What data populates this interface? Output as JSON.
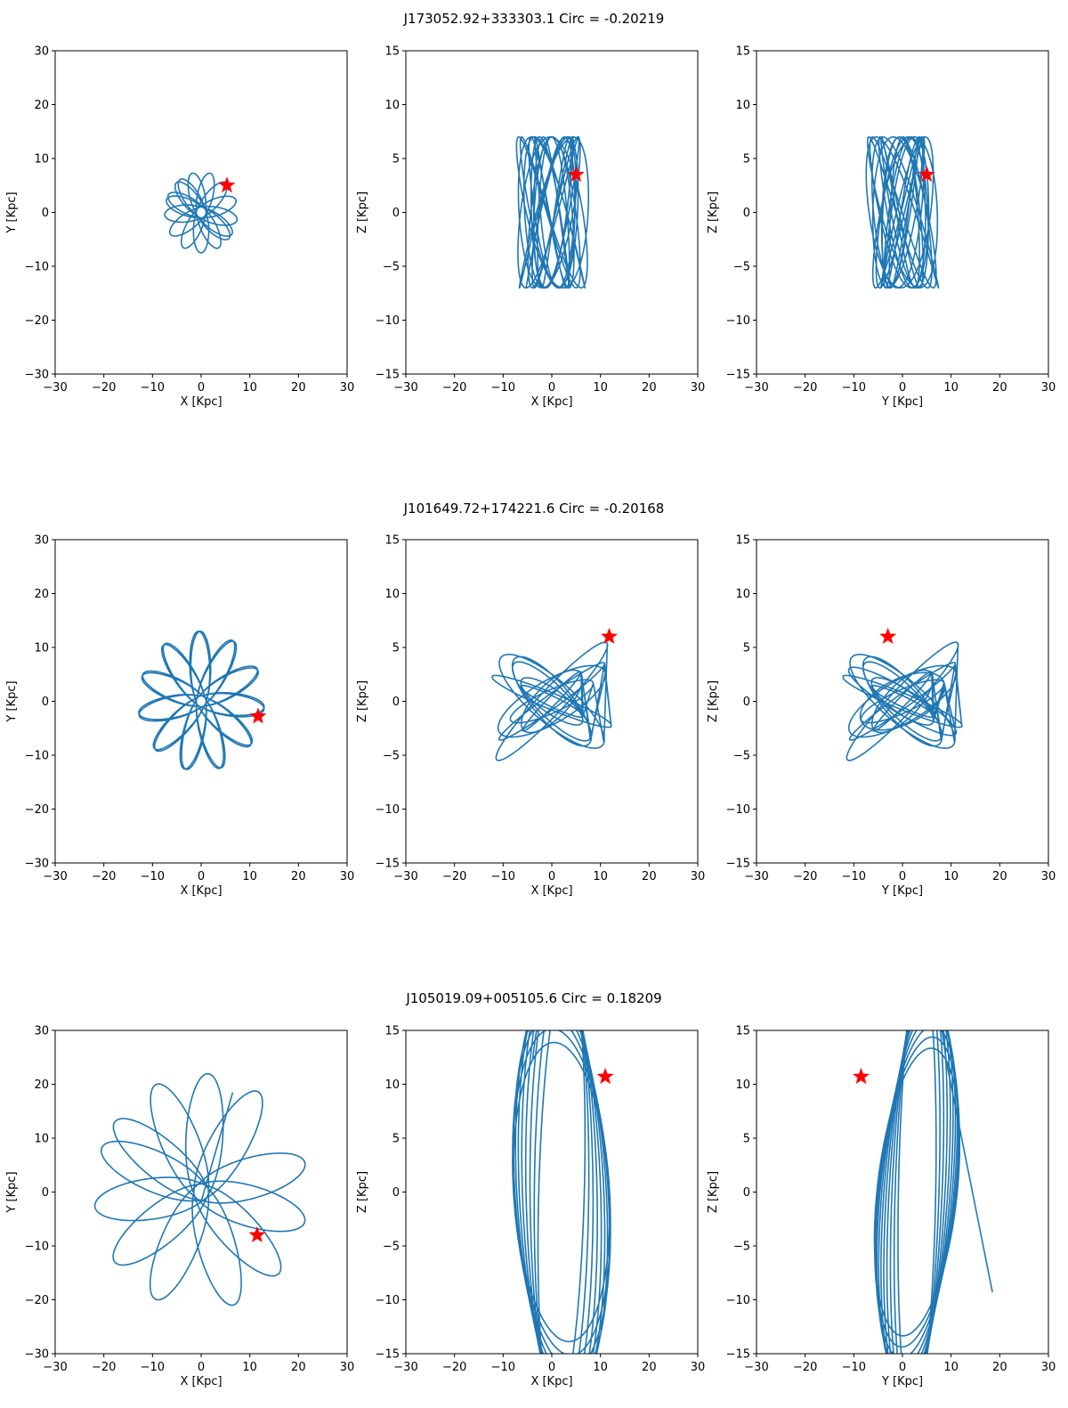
{
  "chart_data": [
    {
      "title": "J173052.92+333303.1    Circ = -0.20219",
      "panels": [
        {
          "type": "line",
          "xlabel": "X [Kpc]",
          "ylabel": "Y [Kpc]",
          "xlim": [
            -30,
            30
          ],
          "ylim": [
            -30,
            30
          ],
          "xticks": [
            -30,
            -20,
            -10,
            0,
            10,
            20,
            30
          ],
          "yticks": [
            -30,
            -20,
            -10,
            0,
            10,
            20,
            30
          ],
          "orbit": {
            "kind": "rosette",
            "r_min": 1.0,
            "r_max": 7.5,
            "petals": 16,
            "ratio": 0.54
          },
          "star": [
            5.3,
            5.0
          ]
        },
        {
          "type": "line",
          "xlabel": "X [Kpc]",
          "ylabel": "Z [Kpc]",
          "xlim": [
            -30,
            30
          ],
          "ylim": [
            -15,
            15
          ],
          "xticks": [
            -30,
            -20,
            -10,
            0,
            10,
            20,
            30
          ],
          "yticks": [
            -15,
            -10,
            -5,
            0,
            5,
            10,
            15
          ],
          "orbit": {
            "kind": "box",
            "ax": 7.8,
            "az": 7.0,
            "fx": 1.0,
            "fz": 1.43,
            "turns": 14,
            "px": 0.35,
            "pz": 1.1
          },
          "star": [
            5.0,
            3.5
          ]
        },
        {
          "type": "line",
          "xlabel": "Y [Kpc]",
          "ylabel": "Z [Kpc]",
          "xlim": [
            -30,
            30
          ],
          "ylim": [
            -15,
            15
          ],
          "xticks": [
            -30,
            -20,
            -10,
            0,
            10,
            20,
            30
          ],
          "yticks": [
            -15,
            -10,
            -5,
            0,
            5,
            10,
            15
          ],
          "orbit": {
            "kind": "box",
            "ax": 7.8,
            "az": 7.0,
            "fx": 1.0,
            "fz": 1.37,
            "turns": 14,
            "px": 1.2,
            "pz": 0.4
          },
          "star": [
            5.0,
            3.5
          ]
        }
      ]
    },
    {
      "title": "J101649.72+174221.6    Circ = -0.20168",
      "panels": [
        {
          "type": "line",
          "xlabel": "X [Kpc]",
          "ylabel": "Y [Kpc]",
          "xlim": [
            -30,
            30
          ],
          "ylim": [
            -30,
            30
          ],
          "xticks": [
            -30,
            -20,
            -10,
            0,
            10,
            20,
            30
          ],
          "yticks": [
            -30,
            -20,
            -10,
            0,
            10,
            20,
            30
          ],
          "orbit": {
            "kind": "rosette",
            "r_min": 1.0,
            "r_max": 13.0,
            "petals": 22,
            "ratio": 0.545
          },
          "star": [
            11.7,
            -2.8
          ]
        },
        {
          "type": "line",
          "xlabel": "X [Kpc]",
          "ylabel": "Z [Kpc]",
          "xlim": [
            -30,
            30
          ],
          "ylim": [
            -15,
            15
          ],
          "xticks": [
            -30,
            -20,
            -10,
            0,
            10,
            20,
            30
          ],
          "yticks": [
            -15,
            -10,
            -5,
            0,
            5,
            10,
            15
          ],
          "orbit": {
            "kind": "xshape",
            "a": 12.5,
            "b": 4.0,
            "tilt": 0.42,
            "loops": 12,
            "zmax": 6.2
          },
          "star": [
            11.8,
            6.0
          ]
        },
        {
          "type": "line",
          "xlabel": "Y [Kpc]",
          "ylabel": "Z [Kpc]",
          "xlim": [
            -30,
            30
          ],
          "ylim": [
            -15,
            15
          ],
          "xticks": [
            -30,
            -20,
            -10,
            0,
            10,
            20,
            30
          ],
          "yticks": [
            -15,
            -10,
            -5,
            0,
            5,
            10,
            15
          ],
          "orbit": {
            "kind": "xshape",
            "a": 12.5,
            "b": 4.0,
            "tilt": 0.42,
            "loops": 14,
            "zmax": 6.2
          },
          "star": [
            -3.0,
            6.0
          ]
        }
      ]
    },
    {
      "title": "J105019.09+005105.6    Circ = 0.18209",
      "panels": [
        {
          "type": "line",
          "xlabel": "X [Kpc]",
          "ylabel": "Y [Kpc]",
          "xlim": [
            -30,
            30
          ],
          "ylim": [
            -30,
            30
          ],
          "xticks": [
            -30,
            -20,
            -10,
            0,
            10,
            20,
            30
          ],
          "yticks": [
            -30,
            -20,
            -10,
            0,
            10,
            20,
            30
          ],
          "orbit": {
            "kind": "rosette",
            "r_min": 1.5,
            "r_max": 22.0,
            "petals": 12,
            "ratio": 0.64,
            "end": [
              6.5,
              18.5
            ]
          },
          "star": [
            11.5,
            -8.0
          ]
        },
        {
          "type": "line",
          "xlabel": "X [Kpc]",
          "ylabel": "Z [Kpc]",
          "xlim": [
            -30,
            30
          ],
          "ylim": [
            -15,
            15
          ],
          "xticks": [
            -30,
            -20,
            -10,
            0,
            10,
            20,
            30
          ],
          "yticks": [
            -15,
            -10,
            -5,
            0,
            5,
            10,
            15
          ],
          "orbit": {
            "kind": "precess",
            "center": [
              2.0,
              0.0
            ],
            "a": 13.5,
            "b": 21.0,
            "tilt0": -0.18,
            "tilt1": 0.95,
            "loops": 11
          },
          "star": [
            11.0,
            10.7
          ]
        },
        {
          "type": "line",
          "xlabel": "Y [Kpc]",
          "ylabel": "Z [Kpc]",
          "xlim": [
            -30,
            30
          ],
          "ylim": [
            -15,
            15
          ],
          "xticks": [
            -30,
            -20,
            -10,
            0,
            10,
            20,
            30
          ],
          "yticks": [
            -15,
            -10,
            -5,
            0,
            5,
            10,
            15
          ],
          "orbit": {
            "kind": "precess",
            "center": [
              3.0,
              0.0
            ],
            "a": 11.0,
            "b": 21.0,
            "tilt0": -0.12,
            "tilt1": -0.95,
            "loops": 11,
            "end": [
              18.5,
              -9.3
            ]
          },
          "star": [
            -8.5,
            10.7
          ]
        }
      ]
    }
  ],
  "colors": {
    "orbit": "#1f77b4",
    "star": "#ff0000",
    "axes": "#000000"
  }
}
